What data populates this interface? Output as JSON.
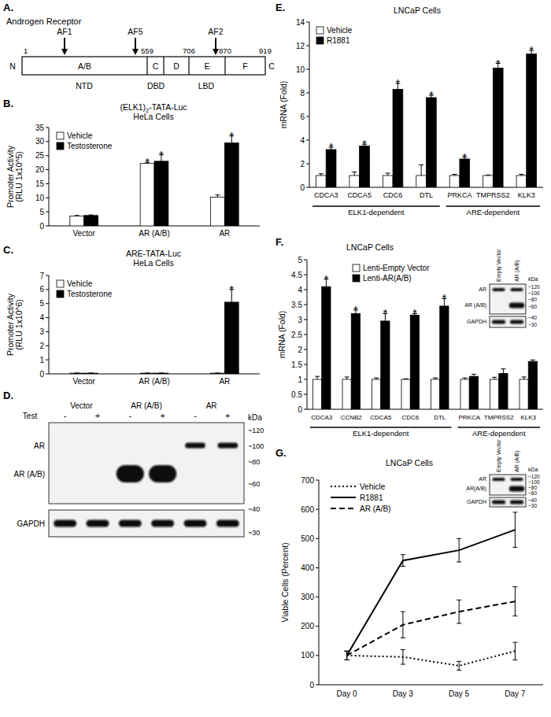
{
  "chart_data": [
    {
      "panel": "B.",
      "type": "bar",
      "title": "(ELK1)2-TATA-Luc",
      "subtitle": "HeLa Cells",
      "y_label": [
        "Promoter Activity",
        "(RLU 1x10^5)"
      ],
      "categories": [
        "Vector",
        "AR (A/B)",
        "AR"
      ],
      "series": [
        {
          "name": "Vehicle",
          "color": "#ffffff",
          "values": [
            3.5,
            22.2,
            10.2
          ],
          "errors": [
            0.2,
            0.4,
            0.8
          ],
          "annotated": [
            false,
            true,
            false
          ]
        },
        {
          "name": "Testosterone",
          "color": "#000000",
          "values": [
            3.7,
            23.0,
            29.5
          ],
          "errors": [
            0.2,
            2.3,
            2.5
          ],
          "annotated": [
            false,
            true,
            true
          ]
        }
      ],
      "annotation": "*",
      "ylim": [
        0,
        35
      ],
      "yticks": [
        0,
        5,
        10,
        15,
        20,
        25,
        30,
        35
      ],
      "legend": "top-left"
    },
    {
      "panel": "C.",
      "type": "bar",
      "title": "ARE-TATA-Luc",
      "subtitle": "HeLa Cells",
      "y_label": [
        "Promoter Activity",
        "(RLU 1x10^6)"
      ],
      "categories": [
        "Vector",
        "AR (A/B)",
        "AR"
      ],
      "series": [
        {
          "name": "Vehicle",
          "color": "#ffffff",
          "values": [
            0.05,
            0.05,
            0.05
          ],
          "errors": [
            0.01,
            0.01,
            0.01
          ],
          "annotated": [
            false,
            false,
            false
          ]
        },
        {
          "name": "Testosterone",
          "color": "#000000",
          "values": [
            0.05,
            0.05,
            5.1
          ],
          "errors": [
            0.01,
            0.01,
            0.9
          ],
          "annotated": [
            false,
            false,
            true
          ]
        }
      ],
      "annotation": "*",
      "ylim": [
        0,
        7
      ],
      "yticks": [
        0,
        1,
        2,
        3,
        4,
        5,
        6,
        7
      ],
      "legend": "top-left"
    },
    {
      "panel": "E.",
      "type": "bar",
      "title": "LNCaP Cells",
      "y_label": [
        "mRNA (Fold)"
      ],
      "categories": [
        "CDCA3",
        "CDCA5",
        "CDC6",
        "DTL",
        "PRKCA",
        "TMPRSS2",
        "KLK3"
      ],
      "series": [
        {
          "name": "Vehicle",
          "color": "#ffffff",
          "values": [
            1,
            1,
            1,
            1,
            1,
            1,
            1
          ],
          "errors": [
            0.15,
            0.3,
            0.2,
            0.9,
            0.1,
            0.05,
            0.1
          ],
          "annotated": [
            false,
            false,
            false,
            false,
            false,
            false,
            false
          ]
        },
        {
          "name": "R1881",
          "color": "#000000",
          "values": [
            3.2,
            3.5,
            8.3,
            7.6,
            2.4,
            10.1,
            11.3
          ],
          "errors": [
            0.2,
            0.15,
            0.5,
            0.2,
            0.15,
            0.4,
            0.3
          ],
          "annotated": [
            true,
            true,
            true,
            true,
            true,
            true,
            true
          ]
        }
      ],
      "annotation": "*",
      "groups": [
        {
          "label": "ELK1-dependent",
          "start": 0,
          "end": 3
        },
        {
          "label": "ARE-dependent",
          "start": 4,
          "end": 6
        }
      ],
      "ylim": [
        0,
        14
      ],
      "yticks": [
        0,
        2,
        4,
        6,
        8,
        10,
        12,
        14
      ],
      "legend": "top-left"
    },
    {
      "panel": "F.",
      "type": "bar",
      "title": "LNCaP Cells",
      "y_label": [
        "mRNA (Fold)"
      ],
      "categories": [
        "CDCA3",
        "CCNB2",
        "CDCA5",
        "CDC6",
        "DTL",
        "PRKCA",
        "TMPRSS2",
        "KLK3"
      ],
      "series": [
        {
          "name": "Lenti-Empty Vector",
          "color": "#ffffff",
          "values": [
            1,
            1,
            1,
            1,
            1,
            1,
            1,
            1
          ],
          "errors": [
            0.1,
            0.08,
            0.05,
            0.02,
            0.05,
            0.05,
            0.07,
            0.08
          ],
          "annotated": [
            false,
            false,
            false,
            false,
            false,
            false,
            false,
            false
          ]
        },
        {
          "name": "Lenti-AR(A/B)",
          "color": "#000000",
          "values": [
            4.1,
            3.2,
            2.95,
            3.15,
            3.45,
            1.1,
            1.2,
            1.6
          ],
          "errors": [
            0.25,
            0.12,
            0.25,
            0.05,
            0.25,
            0.07,
            0.15,
            0.05
          ],
          "annotated": [
            true,
            true,
            true,
            true,
            true,
            false,
            false,
            false
          ]
        }
      ],
      "annotation": "*",
      "groups": [
        {
          "label": "ELK1-dependent",
          "start": 0,
          "end": 4
        },
        {
          "label": "ARE-dependent",
          "start": 5,
          "end": 7
        }
      ],
      "ylim": [
        0,
        5
      ],
      "yticks": [
        0,
        0.5,
        1,
        1.5,
        2,
        2.5,
        3,
        3.5,
        4,
        4.5,
        5
      ],
      "legend": "top-left",
      "inset": {
        "columns": [
          "Empty Vector",
          "AR (A/B)"
        ],
        "rows": [
          {
            "label": "AR",
            "bands": [
              true,
              true
            ]
          },
          {
            "label": "AR (A/B)",
            "bands": [
              false,
              true
            ]
          },
          {
            "label": "GAPDH",
            "bands": [
              true,
              true
            ]
          }
        ],
        "kda_label": "kDa",
        "kda": [
          "~120",
          "~100",
          "~80",
          "~60",
          "~40",
          "~30"
        ]
      }
    },
    {
      "panel": "G.",
      "type": "line",
      "title": "LNCaP Cells",
      "y_label": [
        "Viable Cells (Percent)"
      ],
      "categories": [
        "Day 0",
        "Day 3",
        "Day 5",
        "Day 7"
      ],
      "series": [
        {
          "name": "Vehicle",
          "color": "#000000",
          "line_style": "dotted",
          "values": [
            100,
            95,
            65,
            115
          ],
          "errors": [
            15,
            25,
            15,
            30
          ]
        },
        {
          "name": "R1881",
          "color": "#000000",
          "line_style": "solid",
          "values": [
            100,
            425,
            460,
            530
          ],
          "errors": [
            15,
            20,
            40,
            60
          ]
        },
        {
          "name": "AR (A/B)",
          "color": "#000000",
          "line_style": "dashed",
          "values": [
            100,
            205,
            250,
            285
          ],
          "errors": [
            15,
            45,
            40,
            50
          ]
        }
      ],
      "ylim": [
        0,
        700
      ],
      "yticks": [
        0,
        100,
        200,
        300,
        400,
        500,
        600,
        700
      ],
      "legend": "top-left",
      "inset": {
        "columns": [
          "Empty Vector",
          "AR (A/B)"
        ],
        "rows": [
          {
            "label": "AR",
            "bands": [
              true,
              true
            ]
          },
          {
            "label": "AR(A/B)",
            "bands": [
              false,
              true
            ]
          },
          {
            "label": "GAPDH",
            "bands": [
              true,
              true
            ]
          }
        ],
        "kda_label": "kDa",
        "kda": [
          "~120",
          "~100",
          "~80",
          "~60",
          "~40",
          "~30"
        ]
      }
    }
  ],
  "panel_a": {
    "label": "A.",
    "title": "Androgen Receptor",
    "activation_functions": [
      "AF1",
      "AF5",
      "AF2"
    ],
    "positions": [
      1,
      559,
      706,
      870,
      919
    ],
    "domains": [
      "A/B",
      "C",
      "D",
      "E",
      "F"
    ],
    "termini": [
      "N",
      "C"
    ],
    "regions": [
      "NTD",
      "DBD",
      "LBD"
    ]
  },
  "panel_d": {
    "label": "D.",
    "columns": [
      "Vector",
      "AR (A/B)",
      "AR"
    ],
    "treatment_label": "Test",
    "treatments": [
      "-",
      "+"
    ],
    "rows": [
      {
        "label": "AR",
        "bands": [
          false,
          false,
          false,
          false,
          true,
          true
        ]
      },
      {
        "label": "AR (A/B)",
        "bands": [
          false,
          false,
          true,
          true,
          false,
          false
        ]
      },
      {
        "label": "GAPDH",
        "bands": [
          true,
          true,
          true,
          true,
          true,
          true
        ]
      }
    ],
    "kda_label": "kDa",
    "kda": [
      "~120",
      "~100",
      "~80",
      "~60",
      "~40",
      "~30"
    ]
  }
}
